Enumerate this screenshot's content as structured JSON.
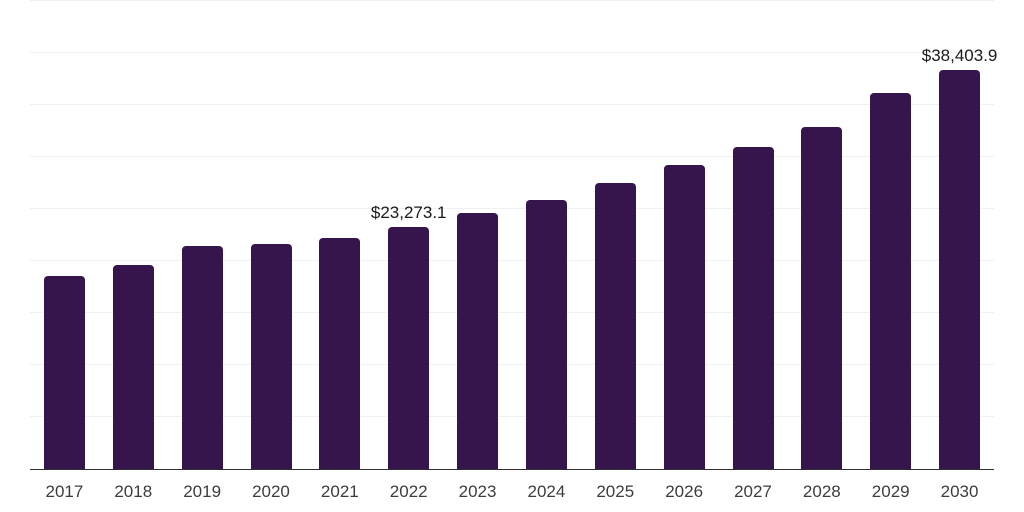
{
  "chart_data": {
    "type": "bar",
    "title": "",
    "xlabel": "",
    "ylabel": "",
    "categories": [
      "2017",
      "2018",
      "2019",
      "2020",
      "2021",
      "2022",
      "2023",
      "2024",
      "2025",
      "2026",
      "2027",
      "2028",
      "2029",
      "2030"
    ],
    "values": [
      18600,
      19650,
      21450,
      21650,
      22250,
      23273.1,
      24650,
      25900,
      27500,
      29250,
      31000,
      32900,
      36200,
      38403.9
    ],
    "data_labels": [
      null,
      null,
      null,
      null,
      null,
      "$23,273.1",
      null,
      null,
      null,
      null,
      null,
      null,
      null,
      "$38,403.9"
    ],
    "ylim": [
      0,
      45000
    ],
    "grid_step": 5000,
    "grid": true,
    "legend": false,
    "y_tick_labels_shown": false
  },
  "colors": {
    "bar": "#36154d",
    "gridline": "#f0f0f0",
    "axis_line": "#2e2e2e",
    "tick_label": "#3d3d3d",
    "data_label": "#1a1a1a",
    "background": "#ffffff"
  }
}
